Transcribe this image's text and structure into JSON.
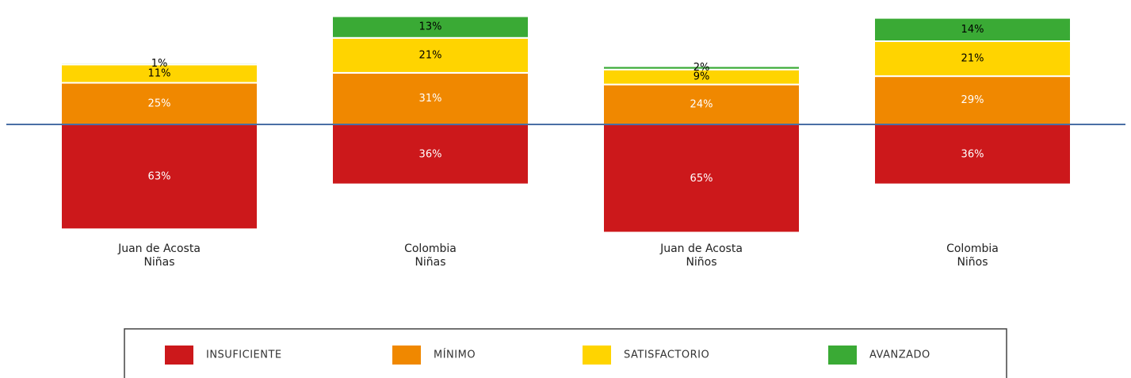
{
  "chart_data": {
    "type": "diverging-stacked-bar",
    "categories": [
      [
        "Juan de Acosta",
        "Niñas"
      ],
      [
        "Colombia",
        "Niñas"
      ],
      [
        "Juan de Acosta",
        "Niños"
      ],
      [
        "Colombia",
        "Niños"
      ]
    ],
    "series": [
      {
        "name": "INSUFICIENTE",
        "color": "#cc181b",
        "label_color": "#ffffff",
        "side": "below",
        "values": [
          63,
          36,
          65,
          36
        ],
        "value_labels": [
          "63%",
          "36%",
          "65%",
          "36%"
        ]
      },
      {
        "name": "MÍNIMO",
        "color": "#f08800",
        "label_color": "#ffffff",
        "side": "above",
        "values": [
          25,
          31,
          24,
          29
        ],
        "value_labels": [
          "25%",
          "31%",
          "24%",
          "29%"
        ]
      },
      {
        "name": "SATISFACTORIO",
        "color": "#ffd400",
        "label_color": "#000000",
        "side": "above",
        "values": [
          11,
          21,
          9,
          21
        ],
        "value_labels": [
          "11%",
          "21%",
          "9%",
          "21%"
        ]
      },
      {
        "name": "AVANZADO",
        "color": "#3aaa35",
        "label_color": "#000000",
        "side": "above",
        "values": [
          1,
          13,
          2,
          14
        ],
        "value_labels": [
          "1%",
          "13%",
          "2%",
          "14%"
        ]
      }
    ],
    "ylim": [
      -70,
      70
    ],
    "baseline_color": "#4a6fa5"
  }
}
